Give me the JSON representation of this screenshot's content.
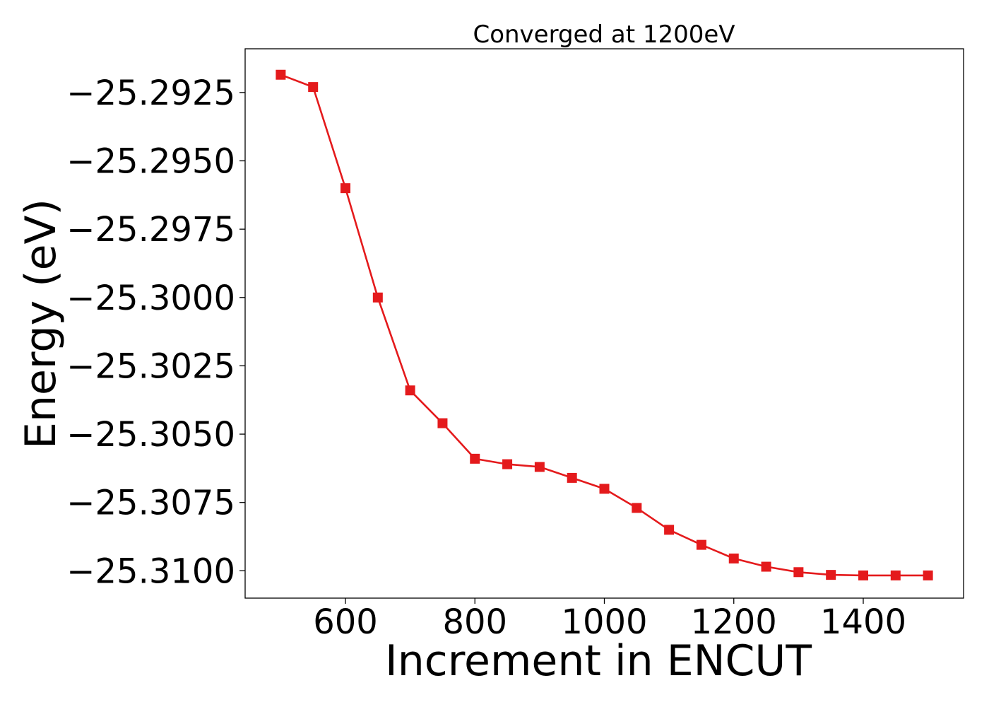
{
  "chart_data": {
    "type": "line",
    "title": "Converged at 1200eV",
    "xlabel": "Increment in ENCUT",
    "ylabel": "Energy (eV)",
    "xlim": [
      445,
      1555
    ],
    "ylim": [
      -25.311,
      -25.2909
    ],
    "xticks": [
      600,
      800,
      1000,
      1200,
      1400
    ],
    "xtick_labels": [
      "600",
      "800",
      "1000",
      "1200",
      "1400"
    ],
    "yticks": [
      -25.2925,
      -25.295,
      -25.2975,
      -25.3,
      -25.3025,
      -25.305,
      -25.3075,
      -25.31
    ],
    "ytick_labels": [
      "−25.2925",
      "−25.2950",
      "−25.2975",
      "−25.3000",
      "−25.3025",
      "−25.3050",
      "−25.3075",
      "−25.3100"
    ],
    "grid": false,
    "marker": "square",
    "series": [
      {
        "color": "#e41a1c",
        "x": [
          500,
          550,
          600,
          650,
          700,
          750,
          800,
          850,
          900,
          950,
          1000,
          1050,
          1100,
          1150,
          1200,
          1250,
          1300,
          1350,
          1400,
          1450,
          1500
        ],
        "y": [
          -25.29185,
          -25.2923,
          -25.296,
          -25.3,
          -25.3034,
          -25.3046,
          -25.3059,
          -25.3061,
          -25.3062,
          -25.3066,
          -25.307,
          -25.3077,
          -25.3085,
          -25.30905,
          -25.30955,
          -25.30985,
          -25.31005,
          -25.31015,
          -25.31017,
          -25.31017,
          -25.31017
        ]
      }
    ]
  }
}
